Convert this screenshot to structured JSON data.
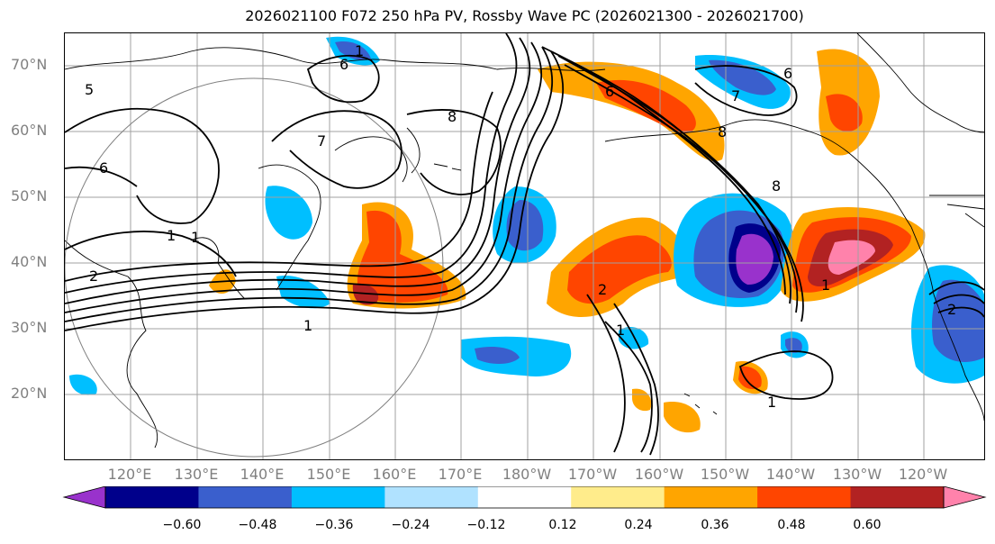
{
  "title": "2026021100 F072 250 hPa PV, Rossby Wave PC (2026021300 - 2026021700)",
  "lat_labels": [
    "70°N",
    "60°N",
    "50°N",
    "40°N",
    "30°N",
    "20°N"
  ],
  "lon_labels": [
    "120°E",
    "130°E",
    "140°E",
    "150°E",
    "160°E",
    "170°E",
    "180°W",
    "170°W",
    "160°W",
    "150°W",
    "140°W",
    "130°W",
    "120°W"
  ],
  "contour_labels": [
    "1",
    "6",
    "8",
    "5",
    "6",
    "1",
    "7",
    "6",
    "7",
    "8",
    "2",
    "1",
    "2",
    "1",
    "2",
    "1",
    "8",
    "6",
    "1",
    "1"
  ],
  "colorbar": {
    "ticks": [
      "−0.60",
      "−0.48",
      "−0.36",
      "−0.24",
      "−0.12",
      "0.12",
      "0.24",
      "0.36",
      "0.48",
      "0.60"
    ],
    "colors": [
      "#9932CC",
      "#00008B",
      "#3A5FCD",
      "#00BFFF",
      "#B0E2FF",
      "#FFFFFF",
      "#FFEC8B",
      "#FFA500",
      "#FF4500",
      "#B22222",
      "#FF82AB"
    ]
  }
}
